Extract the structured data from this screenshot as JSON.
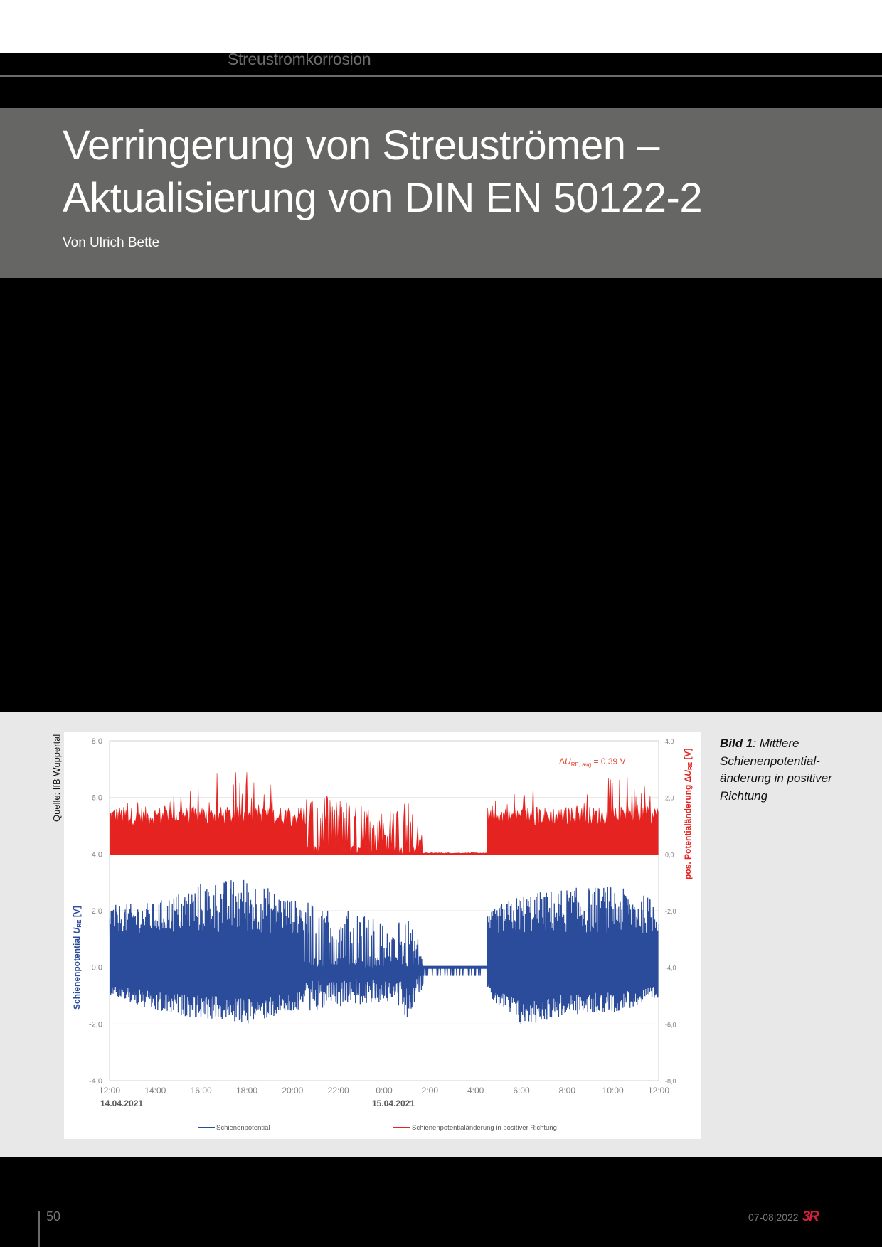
{
  "header": {
    "section": "Streustromkorrosion"
  },
  "article": {
    "title_line1": "Verringerung von Streuströmen –",
    "title_line2": "Aktualisierung von DIN EN 50122-2",
    "byline": "Von Ulrich Bette"
  },
  "figure": {
    "source": "Quelle: IfB Wuppertal",
    "caption_label": "Bild 1",
    "caption_text": ": Mittlere Schienenpotential-änderung in positiver Richtung",
    "annotation": "ΔU_RE, avg = 0,39 V",
    "annotation_parts": {
      "delta": "Δ",
      "var": "U",
      "sub": "RE, avg",
      "rest": " = 0,39 V"
    },
    "left_axis_title": "Schienenpotential U_RE [V]",
    "left_axis_parts": {
      "pre": "Schienenpotential ",
      "var": "U",
      "sub": "RE",
      "post": " [V]"
    },
    "right_axis_title": "pos. Potentialänderung ΔU_RE [V]",
    "right_axis_parts": {
      "pre": "pos. Potentialänderung Δ",
      "var": "U",
      "sub": "RE",
      "post": " [V]"
    },
    "date_start": "14.04.2021",
    "date_next": "15.04.2021",
    "legend": [
      {
        "label": "Schienenpotential",
        "color": "#2b4c9b"
      },
      {
        "label": "Schienenpotentialänderung in positiver Richtung",
        "color": "#e52421"
      }
    ]
  },
  "chart_data": {
    "type": "area",
    "title": "",
    "xlabel": "",
    "ylabel": "Schienenpotential U_RE [V]",
    "y2label": "pos. Potentialänderung ΔU_RE [V]",
    "x_ticks": [
      "12:00",
      "14:00",
      "16:00",
      "18:00",
      "20:00",
      "22:00",
      "0:00",
      "2:00",
      "4:00",
      "6:00",
      "8:00",
      "10:00",
      "12:00"
    ],
    "x_date_labels": [
      {
        "at": "12:00",
        "label": "14.04.2021"
      },
      {
        "at": "0:00",
        "label": "15.04.2021"
      }
    ],
    "y_ticks": [
      "-4,0",
      "-2,0",
      "0,0",
      "2,0",
      "4,0",
      "6,0",
      "8,0"
    ],
    "y2_ticks": [
      "-8,0",
      "-6,0",
      "-4,0",
      "-2,0",
      "0,0",
      "2,0",
      "4,0"
    ],
    "ylim": [
      -4,
      8
    ],
    "y2lim": [
      -8,
      4
    ],
    "grid": true,
    "legend_position": "bottom",
    "annotations": [
      "ΔU_RE, avg = 0,39 V"
    ],
    "series": [
      {
        "name": "Schienenpotential",
        "axis": "left",
        "color": "#2b4c9b",
        "x_hours": [
          0,
          2,
          4,
          6,
          8,
          10,
          12,
          13,
          14,
          15,
          16.5,
          17,
          18,
          20,
          22,
          24
        ],
        "envelope_max": [
          2.2,
          2.3,
          3.0,
          3.2,
          2.4,
          2.1,
          1.6,
          1.9,
          0.0,
          0.0,
          1.8,
          2.2,
          2.6,
          2.8,
          2.9,
          2.4
        ],
        "envelope_min": [
          -1.0,
          -1.6,
          -1.8,
          -2.0,
          -1.6,
          -1.4,
          -1.2,
          -1.8,
          -0.2,
          -0.2,
          -1.0,
          -1.4,
          -2.1,
          -1.7,
          -1.6,
          -1.2
        ],
        "typical_band": [
          -0.9,
          1.6
        ]
      },
      {
        "name": "Schienenpotentialänderung in positiver Richtung",
        "axis": "right",
        "color": "#e52421",
        "x_hours": [
          0,
          2,
          4,
          6,
          8,
          10,
          12,
          13,
          14,
          15,
          16.5,
          17,
          18,
          20,
          22,
          24
        ],
        "envelope_max": [
          1.8,
          2.2,
          2.9,
          3.2,
          2.3,
          2.0,
          1.5,
          2.0,
          0.05,
          0.05,
          1.6,
          2.0,
          2.4,
          2.6,
          2.9,
          2.3
        ],
        "typical_level": 1.4,
        "average": 0.39
      }
    ]
  },
  "footer": {
    "page_number": "50",
    "issue": "07-08|2022",
    "logo": "3R",
    "logo_color": "#d4213d"
  }
}
